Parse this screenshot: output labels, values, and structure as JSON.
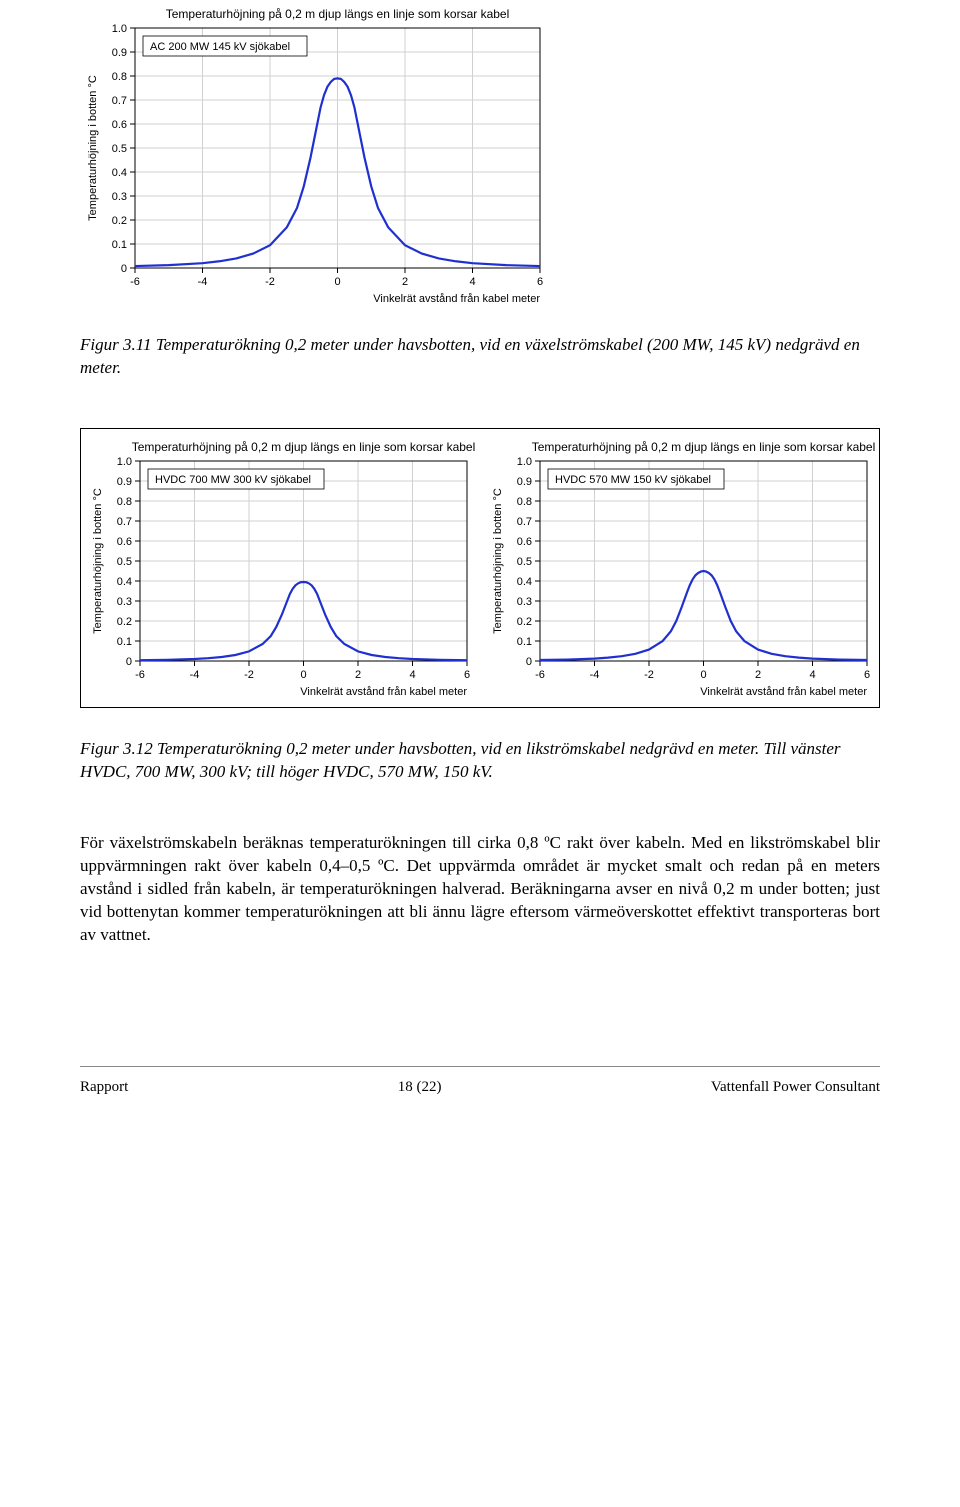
{
  "chart_common": {
    "title": "Temperaturhöjning på 0,2 m djup längs en linje som korsar kabel",
    "xlabel": "Vinkelrät avstånd från kabel meter",
    "ylabel": "Temperaturhöjning i botten °C",
    "xlim": [
      -6,
      6
    ],
    "ylim": [
      0,
      1.0
    ],
    "xticks": [
      -6,
      -4,
      -2,
      0,
      2,
      4,
      6
    ],
    "yticks": [
      0,
      0.1,
      0.2,
      0.3,
      0.4,
      0.5,
      0.6,
      0.7,
      0.8,
      0.9,
      1.0
    ],
    "grid_color": "#d0d0d0",
    "axis_color": "#000000",
    "line_color": "#2030d0",
    "line_width": 2.2,
    "background_color": "#ffffff",
    "title_fontsize": 12,
    "label_fontsize": 11,
    "tick_fontsize": 11
  },
  "chart_top": {
    "legend": "AC 200 MW 145 kV sjökabel",
    "x": [
      -6,
      -5,
      -4,
      -3.5,
      -3,
      -2.5,
      -2,
      -1.5,
      -1.2,
      -1.0,
      -0.8,
      -0.6,
      -0.5,
      -0.4,
      -0.3,
      -0.2,
      -0.1,
      0,
      0.1,
      0.2,
      0.3,
      0.4,
      0.5,
      0.6,
      0.8,
      1.0,
      1.2,
      1.5,
      2,
      2.5,
      3,
      3.5,
      4,
      5,
      6
    ],
    "y": [
      0.008,
      0.012,
      0.02,
      0.028,
      0.04,
      0.06,
      0.095,
      0.17,
      0.25,
      0.34,
      0.46,
      0.6,
      0.67,
      0.72,
      0.755,
      0.775,
      0.788,
      0.79,
      0.788,
      0.775,
      0.755,
      0.72,
      0.67,
      0.6,
      0.46,
      0.34,
      0.25,
      0.17,
      0.095,
      0.06,
      0.04,
      0.028,
      0.02,
      0.012,
      0.008
    ]
  },
  "chart_left": {
    "legend": "HVDC 700 MW 300 kV sjökabel",
    "x": [
      -6,
      -5,
      -4,
      -3.5,
      -3,
      -2.5,
      -2,
      -1.5,
      -1.2,
      -1.0,
      -0.8,
      -0.6,
      -0.5,
      -0.4,
      -0.3,
      -0.2,
      -0.1,
      0,
      0.1,
      0.2,
      0.3,
      0.4,
      0.5,
      0.6,
      0.8,
      1.0,
      1.2,
      1.5,
      2,
      2.5,
      3,
      3.5,
      4,
      5,
      6
    ],
    "y": [
      0.004,
      0.006,
      0.01,
      0.014,
      0.02,
      0.03,
      0.048,
      0.085,
      0.125,
      0.17,
      0.23,
      0.3,
      0.335,
      0.36,
      0.378,
      0.388,
      0.394,
      0.395,
      0.394,
      0.388,
      0.378,
      0.36,
      0.335,
      0.3,
      0.23,
      0.17,
      0.125,
      0.085,
      0.048,
      0.03,
      0.02,
      0.014,
      0.01,
      0.006,
      0.004
    ]
  },
  "chart_right": {
    "legend": "HVDC 570 MW 150 kV sjökabel",
    "x": [
      -6,
      -5,
      -4,
      -3.5,
      -3,
      -2.5,
      -2,
      -1.5,
      -1.2,
      -1.0,
      -0.8,
      -0.6,
      -0.5,
      -0.4,
      -0.3,
      -0.2,
      -0.1,
      0,
      0.1,
      0.2,
      0.3,
      0.4,
      0.5,
      0.6,
      0.8,
      1.0,
      1.2,
      1.5,
      2,
      2.5,
      3,
      3.5,
      4,
      5,
      6
    ],
    "y": [
      0.005,
      0.007,
      0.012,
      0.017,
      0.024,
      0.036,
      0.057,
      0.1,
      0.148,
      0.2,
      0.27,
      0.345,
      0.38,
      0.408,
      0.428,
      0.44,
      0.447,
      0.45,
      0.447,
      0.44,
      0.428,
      0.408,
      0.38,
      0.345,
      0.27,
      0.2,
      0.148,
      0.1,
      0.057,
      0.036,
      0.024,
      0.017,
      0.012,
      0.007,
      0.005
    ]
  },
  "caption1": "Figur 3.11 Temperaturökning 0,2 meter under havsbotten, vid en växelströmskabel (200 MW, 145 kV) nedgrävd en meter.",
  "caption2": "Figur 3.12 Temperaturökning 0,2 meter under havsbotten, vid en likströmskabel nedgrävd en meter. Till vänster HVDC, 700 MW, 300 kV; till höger HVDC, 570 MW, 150 kV.",
  "body": "För växelströmskabeln beräknas temperaturökningen till cirka 0,8 ºC rakt över kabeln. Med en likströmskabel blir uppvärmningen rakt över kabeln 0,4–0,5 ºC. Det uppvärmda området är mycket smalt och redan på en meters avstånd i sidled från kabeln, är temperaturökningen halverad. Beräkningarna avser en nivå 0,2 m under botten; just vid bottenytan kommer temperaturökningen att bli ännu lägre eftersom värmeöverskottet effektivt transporteras bort av vattnet.",
  "footer": {
    "left": "Rapport",
    "center": "18 (22)",
    "right": "Vattenfall Power Consultant"
  }
}
